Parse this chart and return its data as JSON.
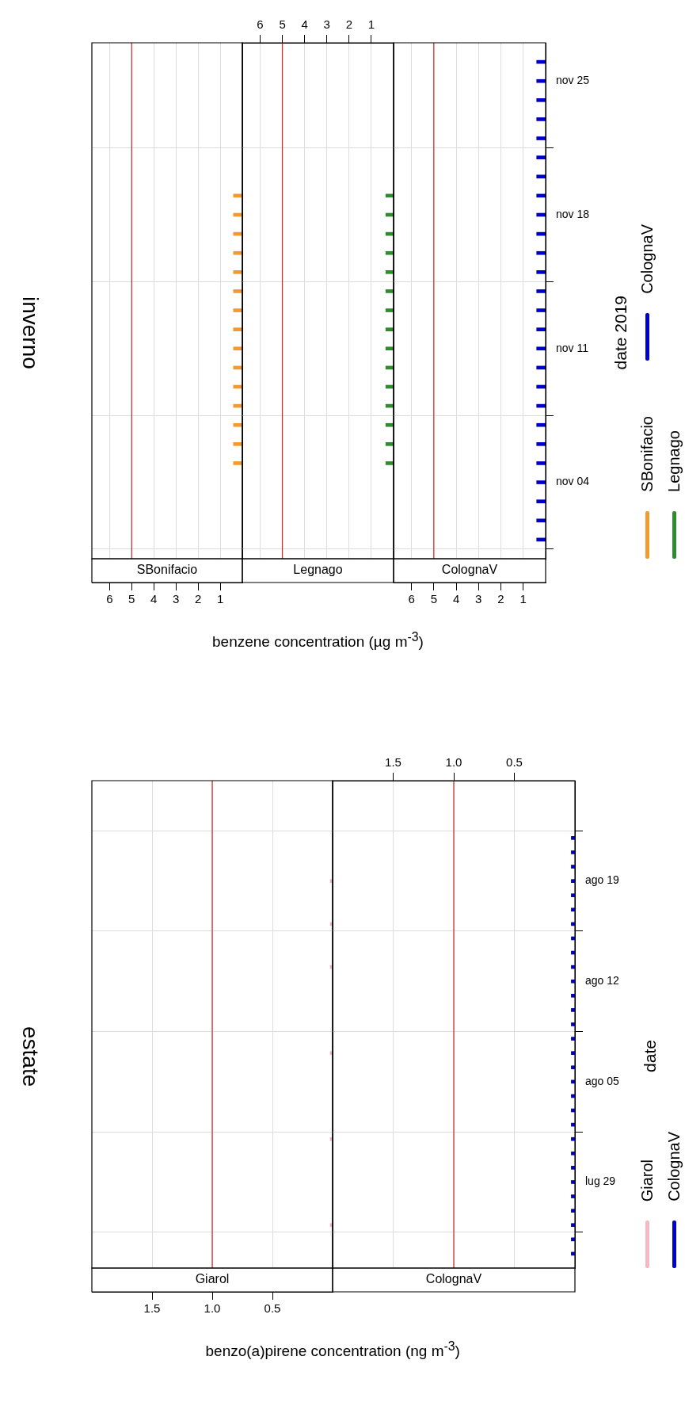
{
  "chart_data": [
    {
      "type": "bar",
      "orientation": "horizontal",
      "title": "inverno",
      "xlabel": "benzene concentration (µg m$^{-3}$)",
      "legend": "right",
      "grid": true,
      "tick_labels": "x",
      "xlim": [
        6.8,
        0
      ],
      "xticks": [
        1,
        2,
        3,
        4,
        5,
        6
      ],
      "ylim": [
        "2019-10-31",
        "2019-11-27"
      ],
      "yticks": [
        {
          "value": "2019-11-04",
          "label": null
        },
        {
          "value": "2019-11-11",
          "label": null
        },
        {
          "value": "2019-11-18",
          "label": null
        },
        {
          "value": "2019-11-25",
          "label": null
        }
      ],
      "ref_lines": [
        {
          "axis": "x",
          "value": 5,
          "color": "#cc3333"
        }
      ],
      "x": [
        "2019-11-05",
        "2019-11-06",
        "2019-11-07",
        "2019-11-08",
        "2019-11-09",
        "2019-11-10",
        "2019-11-11",
        "2019-11-12",
        "2019-11-13",
        "2019-11-14",
        "2019-11-15",
        "2019-11-16",
        "2019-11-17",
        "2019-11-18",
        "2019-11-19"
      ],
      "series": [
        {
          "name": "SBonifacio",
          "color": "#f29a2e",
          "values": [
            0.4,
            0.4,
            0.4,
            0.4,
            0.4,
            0.4,
            0.4,
            0.4,
            0.4,
            0.4,
            0.4,
            0.4,
            0.4,
            0.4,
            0.4
          ]
        }
      ]
    },
    {
      "type": "bar",
      "orientation": "horizontal",
      "legend": "right",
      "grid": true,
      "tick_labels": "x",
      "xlim": [
        6.8,
        0
      ],
      "xticks": [
        1,
        2,
        3,
        4,
        5,
        6
      ],
      "ylim": [
        "2019-10-31",
        "2019-11-27"
      ],
      "yticks": [
        {
          "value": "2019-11-04",
          "label": null
        },
        {
          "value": "2019-11-11",
          "label": null
        },
        {
          "value": "2019-11-18",
          "label": null
        },
        {
          "value": "2019-11-25",
          "label": null
        }
      ],
      "ref_lines": [
        {
          "axis": "x",
          "value": 5,
          "color": "#cc3333"
        }
      ],
      "x": [
        "2019-11-05",
        "2019-11-06",
        "2019-11-07",
        "2019-11-08",
        "2019-11-09",
        "2019-11-10",
        "2019-11-11",
        "2019-11-12",
        "2019-11-13",
        "2019-11-14",
        "2019-11-15",
        "2019-11-16",
        "2019-11-17",
        "2019-11-18",
        "2019-11-19"
      ],
      "series": [
        {
          "name": "Legnago",
          "color": "#2e8b2e",
          "values": [
            0.35,
            0.35,
            0.35,
            0.35,
            0.35,
            0.35,
            0.35,
            0.35,
            0.35,
            0.35,
            0.35,
            0.35,
            0.35,
            0.35,
            0.35
          ]
        }
      ]
    },
    {
      "type": "bar",
      "orientation": "horizontal",
      "ylabel": "date 2019",
      "legend": "right",
      "grid": true,
      "xlim": [
        6.8,
        0
      ],
      "xticks": [
        1,
        2,
        3,
        4,
        5,
        6
      ],
      "ylim": [
        "2019-10-31",
        "2019-11-27"
      ],
      "yticks": [
        {
          "value": "2019-11-04",
          "label": "nov 04"
        },
        {
          "value": "2019-11-11",
          "label": "nov 11"
        },
        {
          "value": "2019-11-18",
          "label": "nov 18"
        },
        {
          "value": "2019-11-25",
          "label": "nov 25"
        }
      ],
      "ref_lines": [
        {
          "axis": "x",
          "value": 5,
          "color": "#cc3333"
        }
      ],
      "x": [
        "2019-11-01",
        "2019-11-02",
        "2019-11-03",
        "2019-11-04",
        "2019-11-05",
        "2019-11-06",
        "2019-11-07",
        "2019-11-08",
        "2019-11-09",
        "2019-11-10",
        "2019-11-11",
        "2019-11-12",
        "2019-11-13",
        "2019-11-14",
        "2019-11-15",
        "2019-11-16",
        "2019-11-17",
        "2019-11-18",
        "2019-11-19",
        "2019-11-20",
        "2019-11-21",
        "2019-11-22",
        "2019-11-23",
        "2019-11-24",
        "2019-11-25",
        "2019-11-26"
      ],
      "series": [
        {
          "name": "ColognaV",
          "color": "#0000cc",
          "values": [
            0.4,
            0.4,
            0.4,
            0.4,
            0.4,
            0.4,
            0.4,
            0.4,
            0.4,
            0.4,
            0.4,
            0.4,
            0.4,
            0.4,
            0.4,
            0.4,
            0.4,
            0.4,
            0.4,
            0.4,
            0.4,
            0.4,
            0.4,
            0.4,
            0.4,
            0.4
          ]
        }
      ]
    },
    {
      "type": "bar",
      "orientation": "horizontal",
      "title": "estate",
      "xlabel": "benzo(a)pirene concentration (ng m$^{-3}$)",
      "legend": "right",
      "grid": true,
      "tick_labels": "x",
      "xlim": [
        2,
        0
      ],
      "xticks": [
        0.5,
        {
          "value": 1,
          "label": "1.0"
        },
        1.5
      ],
      "ylim": [
        "--07-23",
        "--08-26"
      ],
      "yticks": [
        {
          "value": "--07-29",
          "label": null
        },
        {
          "value": "--08-05",
          "label": null
        },
        {
          "value": "--08-12",
          "label": null
        },
        {
          "value": "--08-19",
          "label": null
        }
      ],
      "ref_lines": [
        {
          "axis": "x",
          "value": 1,
          "color": "#cc3333"
        }
      ],
      "x": [
        "--07-26",
        "--08-01",
        "--08-07",
        "--08-13",
        "--08-16",
        "--08-19"
      ],
      "series": [
        {
          "name": "Giarol",
          "color": "#f4b8c4",
          "values": [
            0.02,
            0.02,
            0.02,
            0.02,
            0.02,
            0.02
          ]
        }
      ]
    },
    {
      "type": "bar",
      "orientation": "horizontal",
      "ylabel": "date",
      "legend": "right",
      "grid": true,
      "xlim": [
        2,
        0
      ],
      "xticks": [
        0.5,
        {
          "value": 1,
          "label": "1.0"
        },
        1.5
      ],
      "ylim": [
        "--07-23",
        "--08-26"
      ],
      "yticks": [
        {
          "value": "--07-29",
          "label": "lug 29"
        },
        {
          "value": "--08-05",
          "label": "ago 05"
        },
        {
          "value": "--08-12",
          "label": "ago 12"
        },
        {
          "value": "--08-19",
          "label": "ago 19"
        }
      ],
      "ref_lines": [
        {
          "axis": "x",
          "value": 1,
          "color": "#cc3333"
        }
      ],
      "x": [
        "--07-24",
        "--07-25",
        "--07-26",
        "--07-27",
        "--07-28",
        "--07-29",
        "--07-30",
        "--07-31",
        "--08-01",
        "--08-02",
        "--08-03",
        "--08-04",
        "--08-05",
        "--08-06",
        "--08-07",
        "--08-08",
        "--08-09",
        "--08-10",
        "--08-11",
        "--08-12",
        "--08-13",
        "--08-14",
        "--08-15",
        "--08-16",
        "--08-17",
        "--08-18",
        "--08-19",
        "--08-20",
        "--08-21",
        "--08-22"
      ],
      "series": [
        {
          "name": "ColognaV",
          "color": "#0000cc",
          "values": [
            0.03,
            0.03,
            0.03,
            0.03,
            0.03,
            0.03,
            0.03,
            0.03,
            0.03,
            0.03,
            0.03,
            0.03,
            0.03,
            0.03,
            0.03,
            0.03,
            0.03,
            0.03,
            0.03,
            0.03,
            0.03,
            0.03,
            0.03,
            0.03,
            0.03,
            0.03,
            0.03,
            0.03,
            0.03,
            0.03
          ]
        }
      ]
    }
  ]
}
